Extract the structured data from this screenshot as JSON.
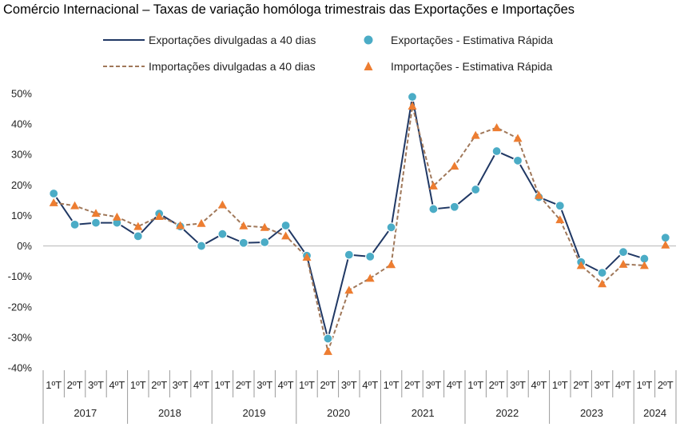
{
  "chart_data": {
    "type": "line",
    "title": "Comércio Internacional – Taxas de variação homóloga trimestrais das Exportações e Importações",
    "xlabel": "",
    "ylabel": "",
    "ylim": [
      -40,
      50
    ],
    "yticks": [
      50,
      40,
      30,
      20,
      10,
      0,
      -10,
      -20,
      -30,
      -40
    ],
    "ytick_labels": [
      "50%",
      "40%",
      "30%",
      "20%",
      "10%",
      "0%",
      "-10%",
      "-20%",
      "-30%",
      "-40%"
    ],
    "quarters": [
      "1ºT",
      "2ºT",
      "3ºT",
      "4ºT",
      "1ºT",
      "2ºT",
      "3ºT",
      "4ºT",
      "1ºT",
      "2ºT",
      "3ºT",
      "4ºT",
      "1ºT",
      "2ºT",
      "3ºT",
      "4ºT",
      "1ºT",
      "2ºT",
      "3ºT",
      "4ºT",
      "1ºT",
      "2ºT",
      "3ºT",
      "4ºT",
      "1ºT",
      "2ºT",
      "3ºT",
      "4ºT",
      "1ºT",
      "2ºT"
    ],
    "years": [
      {
        "label": "2017",
        "quarters": 4
      },
      {
        "label": "2018",
        "quarters": 4
      },
      {
        "label": "2019",
        "quarters": 4
      },
      {
        "label": "2020",
        "quarters": 4
      },
      {
        "label": "2021",
        "quarters": 4
      },
      {
        "label": "2022",
        "quarters": 4
      },
      {
        "label": "2023",
        "quarters": 4
      },
      {
        "label": "2024",
        "quarters": 2
      }
    ],
    "legend_position": "top",
    "series": [
      {
        "name": "Exportações divulgadas  a 40 dias",
        "style": "solid-line",
        "color": "#203864",
        "values": [
          17.2,
          7.0,
          7.6,
          7.6,
          3.2,
          10.6,
          6.4,
          0.0,
          3.9,
          1.0,
          1.2,
          6.7,
          -3.2,
          -30.4,
          -2.9,
          -3.5,
          6.1,
          48.9,
          12.1,
          12.8,
          18.5,
          31.1,
          28.0,
          16.0,
          13.2,
          -5.3,
          -8.8,
          -2.0,
          -4.2,
          null
        ]
      },
      {
        "name": "Exportações - Estimativa Rápida",
        "style": "circle-marker",
        "color": "#4BACC6",
        "values": [
          17.2,
          7.0,
          7.6,
          7.6,
          3.2,
          10.6,
          6.4,
          0.0,
          3.9,
          1.0,
          1.2,
          6.7,
          -3.2,
          -30.4,
          -2.9,
          -3.5,
          6.1,
          48.9,
          12.1,
          12.8,
          18.5,
          31.1,
          28.0,
          16.0,
          13.2,
          -5.3,
          -8.8,
          -2.0,
          -4.2,
          2.7
        ]
      },
      {
        "name": "Importações divulgadas a 40 dias",
        "style": "dashed-line",
        "color": "#A0785A",
        "values": [
          14.2,
          13.2,
          10.7,
          9.5,
          6.4,
          9.7,
          6.7,
          7.4,
          13.5,
          6.6,
          6.1,
          3.3,
          -3.7,
          -34.6,
          -14.5,
          -10.6,
          -6.1,
          45.9,
          19.7,
          26.2,
          36.3,
          38.8,
          35.3,
          16.6,
          8.6,
          -6.4,
          -12.4,
          -6.0,
          -6.4,
          null
        ]
      },
      {
        "name": "Importações - Estimativa Rápida",
        "style": "triangle-marker",
        "color": "#ED7D31",
        "values": [
          14.2,
          13.2,
          10.7,
          9.5,
          6.4,
          9.7,
          6.7,
          7.4,
          13.5,
          6.6,
          6.1,
          3.3,
          -3.7,
          -34.6,
          -14.5,
          -10.6,
          -6.1,
          45.9,
          19.7,
          26.2,
          36.3,
          38.8,
          35.3,
          16.6,
          8.6,
          -6.4,
          -12.4,
          -6.0,
          -6.4,
          0.3
        ]
      }
    ]
  }
}
